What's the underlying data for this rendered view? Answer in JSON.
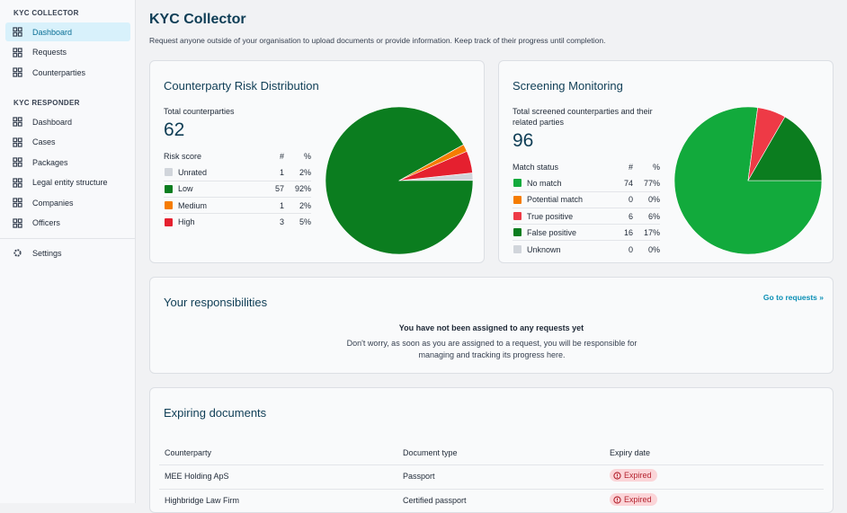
{
  "sidebar": {
    "collector_heading": "KYC COLLECTOR",
    "collector_items": [
      "Dashboard",
      "Requests",
      "Counterparties"
    ],
    "responder_heading": "KYC RESPONDER",
    "responder_items": [
      "Dashboard",
      "Cases",
      "Packages",
      "Legal entity structure",
      "Companies",
      "Officers"
    ],
    "settings": "Settings"
  },
  "header": {
    "title": "KYC Collector",
    "subtitle": "Request anyone outside of your organisation to upload documents or provide information. Keep track of their progress until completion."
  },
  "chart_data": [
    {
      "type": "pie",
      "title": "Counterparty Risk Distribution",
      "total_label": "Total counterparties",
      "total": 62,
      "column_headers": [
        "Risk score",
        "#",
        "%"
      ],
      "categories": [
        "Unrated",
        "Low",
        "Medium",
        "High"
      ],
      "values": [
        1,
        57,
        1,
        3
      ],
      "percent_labels": [
        "2%",
        "92%",
        "2%",
        "5%"
      ],
      "colors": [
        "#d1d5db",
        "#0b7d1f",
        "#f57c00",
        "#e5202f"
      ]
    },
    {
      "type": "pie",
      "title": "Screening Monitoring",
      "total_label": "Total screened counterparties and their related parties",
      "total": 96,
      "column_headers": [
        "Match status",
        "#",
        "%"
      ],
      "categories": [
        "No match",
        "Potential match",
        "True positive",
        "False positive",
        "Unknown"
      ],
      "values": [
        74,
        0,
        6,
        16,
        0
      ],
      "percent_labels": [
        "77%",
        "0%",
        "6%",
        "17%",
        "0%"
      ],
      "colors": [
        "#12aa3c",
        "#f57c00",
        "#ee3a46",
        "#0b7d1f",
        "#d1d5db"
      ]
    }
  ],
  "responsibilities": {
    "title": "Your responsibilities",
    "link": "Go to requests »",
    "empty_title": "You have not been assigned to any requests yet",
    "empty_text": "Don't worry, as soon as you are assigned to a request, you will be responsible for managing and tracking its progress here."
  },
  "expiring": {
    "title": "Expiring documents",
    "columns": [
      "Counterparty",
      "Document type",
      "Expiry date"
    ],
    "rows": [
      [
        "MEE Holding ApS",
        "Passport",
        "Expired"
      ],
      [
        "Highbridge Law Firm",
        "Certified passport",
        "Expired"
      ]
    ]
  }
}
